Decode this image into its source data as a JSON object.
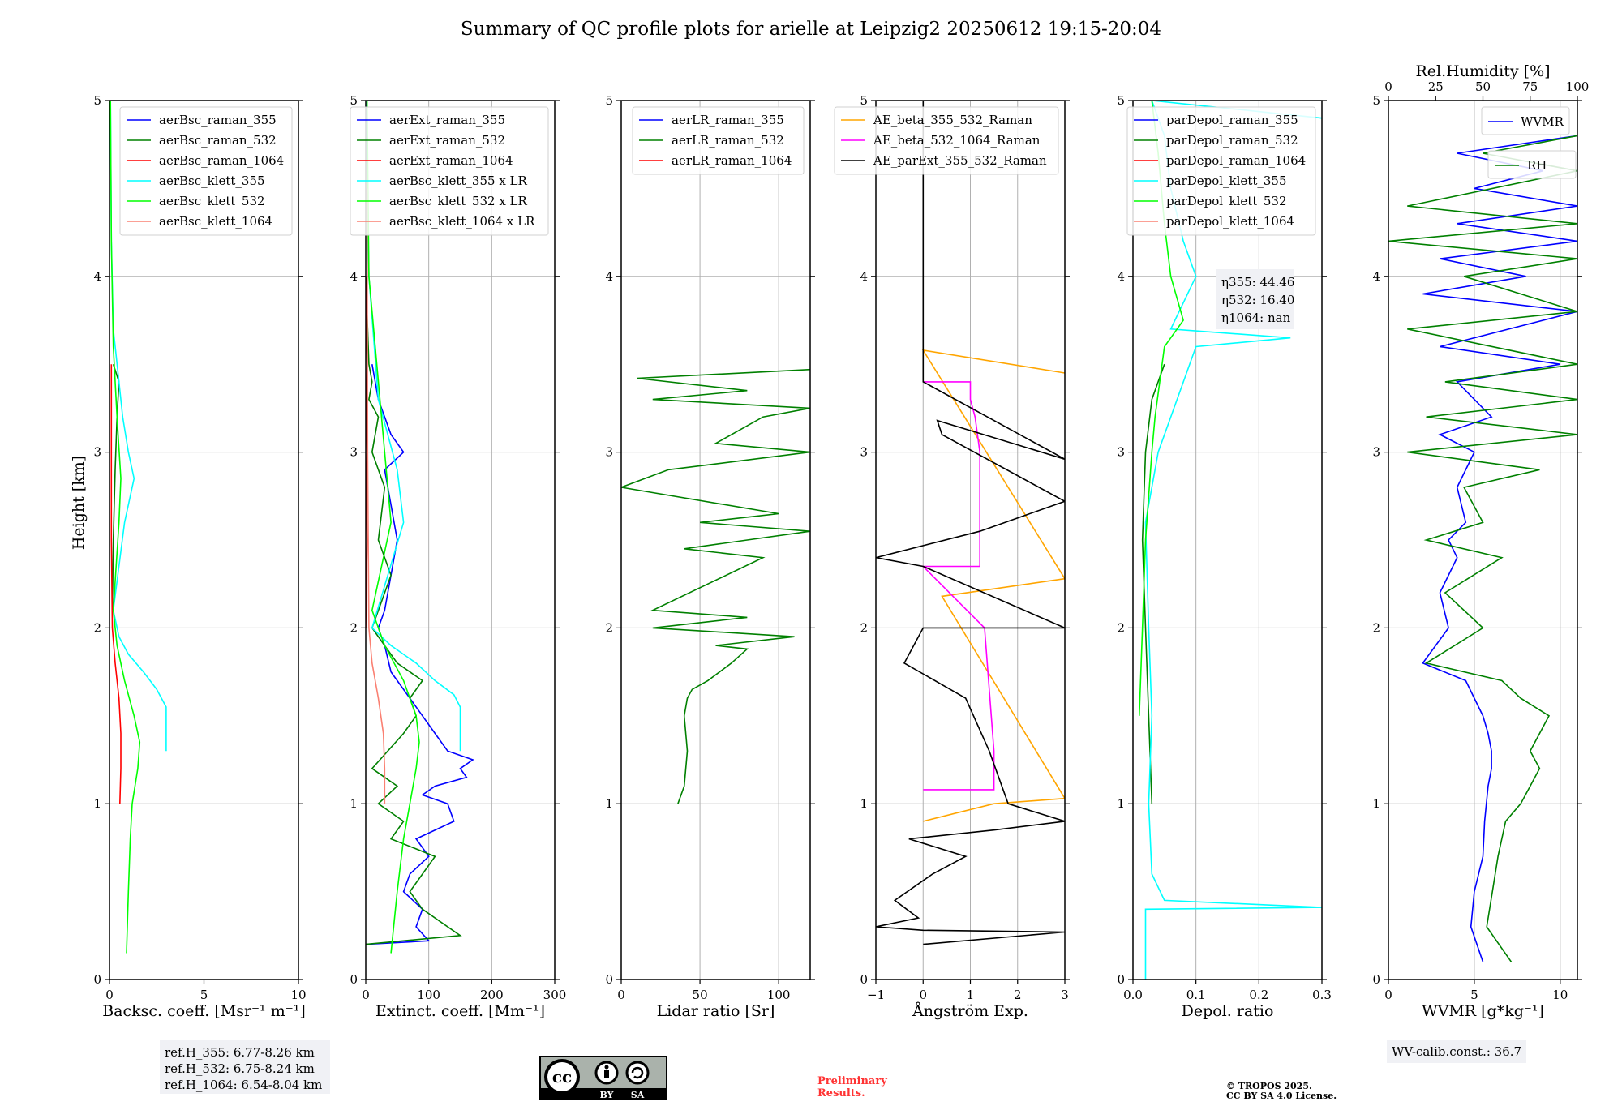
{
  "title": "Summary of QC profile plots for arielle at Leipzig2 20250612 19:15-20:04",
  "ylabel": "Height [km]",
  "ref_box": [
    "ref.H_355: 6.77-8.26 km",
    "ref.H_532: 6.75-8.24 km",
    "ref.H_1064: 6.54-8.04 km"
  ],
  "eta_box": [
    "η355: 44.46",
    "η532: 16.40",
    "η1064: nan"
  ],
  "wv_calib": "WV-calib.const.: 36.7",
  "preliminary": [
    "Preliminary",
    "Results."
  ],
  "copyright": [
    "© TROPOS 2025.",
    "CC BY SA 4.0 License."
  ],
  "license_badge": {
    "by": "BY",
    "sa": "SA",
    "cc": "cc"
  },
  "colors": {
    "blue": "#0000ff",
    "green": "#008000",
    "red": "#ff0000",
    "cyan": "#00ffff",
    "lime": "#00ff00",
    "salmon": "#fa8072",
    "orange": "#ffa500",
    "magenta": "#ff00ff",
    "black": "#000000"
  },
  "chart_data": [
    {
      "type": "line",
      "xlabel": "Backsc. coeff. [Msr⁻¹ m⁻¹]",
      "xlim": [
        0,
        10
      ],
      "xticks": [
        0,
        5,
        10
      ],
      "ylim": [
        0,
        5
      ],
      "yticks": [
        0,
        1,
        2,
        3,
        4,
        5
      ],
      "grid": true,
      "legend": "top-right",
      "series": [
        {
          "name": "aerBsc_raman_355",
          "color": "#0000ff",
          "x": [],
          "y": []
        },
        {
          "name": "aerBsc_raman_532",
          "color": "#008000",
          "x": [
            0.15,
            0.2,
            0.3,
            0.4,
            0.5,
            0.2
          ],
          "y": [
            2.1,
            2.5,
            2.9,
            3.2,
            3.4,
            3.5
          ]
        },
        {
          "name": "aerBsc_raman_1064",
          "color": "#ff0000",
          "x": [
            0.55,
            0.6,
            0.6,
            0.5,
            0.3,
            0.15,
            0.1,
            0.1
          ],
          "y": [
            1.0,
            1.2,
            1.4,
            1.6,
            1.8,
            2.0,
            2.5,
            3.5
          ]
        },
        {
          "name": "aerBsc_klett_355",
          "color": "#00ffff",
          "x": [
            3.0,
            3.0,
            2.5,
            1.8,
            1.0,
            0.5,
            0.2,
            0.8,
            1.3,
            1.0,
            0.7,
            0.5,
            0.2,
            0.1,
            0.05
          ],
          "y": [
            1.3,
            1.55,
            1.65,
            1.75,
            1.85,
            1.95,
            2.1,
            2.6,
            2.85,
            3.0,
            3.2,
            3.4,
            3.7,
            4.2,
            5.0
          ]
        },
        {
          "name": "aerBsc_klett_532",
          "color": "#00ff00",
          "x": [
            0.9,
            1.0,
            1.1,
            1.2,
            1.5,
            1.6,
            1.3,
            0.8,
            0.4,
            0.2,
            0.5,
            0.6,
            0.4,
            0.2,
            0.1,
            0.05
          ],
          "y": [
            0.15,
            0.5,
            0.8,
            1.0,
            1.2,
            1.35,
            1.5,
            1.7,
            1.9,
            2.1,
            2.6,
            2.85,
            3.2,
            3.6,
            4.2,
            5.0
          ]
        },
        {
          "name": "aerBsc_klett_1064",
          "color": "#fa8072",
          "x": [],
          "y": []
        }
      ]
    },
    {
      "type": "line",
      "xlabel": "Extinct. coeff. [Mm⁻¹]",
      "xlim": [
        0,
        300
      ],
      "xticks": [
        0,
        100,
        200,
        300
      ],
      "ylim": [
        0,
        5
      ],
      "yticks": [
        0,
        1,
        2,
        3,
        4,
        5
      ],
      "grid": true,
      "legend": "top-right",
      "series": [
        {
          "name": "aerExt_raman_355",
          "color": "#0000ff",
          "x": [
            0,
            100,
            80,
            90,
            60,
            70,
            100,
            80,
            140,
            130,
            90,
            110,
            160,
            150,
            170,
            130,
            110,
            90,
            70,
            40,
            30,
            20,
            30,
            40,
            50,
            40,
            30,
            60,
            40,
            30,
            20,
            10
          ],
          "y": [
            0.2,
            0.22,
            0.3,
            0.4,
            0.5,
            0.6,
            0.7,
            0.8,
            0.9,
            1.0,
            1.05,
            1.1,
            1.15,
            1.2,
            1.25,
            1.3,
            1.4,
            1.5,
            1.6,
            1.75,
            1.9,
            2.0,
            2.1,
            2.3,
            2.5,
            2.7,
            2.9,
            3.0,
            3.1,
            3.2,
            3.3,
            3.5
          ]
        },
        {
          "name": "aerExt_raman_532",
          "color": "#008000",
          "x": [
            0,
            150,
            90,
            70,
            110,
            40,
            60,
            20,
            50,
            10,
            60,
            80,
            70,
            90,
            50,
            30,
            10,
            40,
            20,
            30,
            10,
            20,
            5,
            10,
            5,
            0
          ],
          "y": [
            0.2,
            0.25,
            0.4,
            0.5,
            0.7,
            0.8,
            0.9,
            1.0,
            1.1,
            1.2,
            1.4,
            1.5,
            1.6,
            1.7,
            1.8,
            1.9,
            2.0,
            2.3,
            2.5,
            2.8,
            3.0,
            3.2,
            3.3,
            3.4,
            3.5,
            4.0
          ]
        },
        {
          "name": "aerExt_raman_1064",
          "color": "#ff0000",
          "x": [
            0,
            2,
            0,
            2,
            0
          ],
          "y": [
            2.0,
            2.5,
            3.0,
            3.5,
            4.0
          ]
        },
        {
          "name": "aerBsc_klett_355 x LR",
          "color": "#00ffff",
          "x": [
            150,
            150,
            140,
            110,
            80,
            40,
            10,
            60,
            50,
            20,
            5,
            0
          ],
          "y": [
            1.3,
            1.55,
            1.62,
            1.7,
            1.8,
            1.9,
            2.0,
            2.6,
            2.9,
            3.3,
            4.0,
            5.0
          ]
        },
        {
          "name": "aerBsc_klett_532 x LR",
          "color": "#00ff00",
          "x": [
            40,
            50,
            60,
            70,
            80,
            85,
            80,
            60,
            30,
            10,
            40,
            30,
            5,
            2
          ],
          "y": [
            0.15,
            0.5,
            0.8,
            1.0,
            1.2,
            1.35,
            1.5,
            1.7,
            1.9,
            2.1,
            2.6,
            3.0,
            4.0,
            5.0
          ]
        },
        {
          "name": "aerBsc_klett_1064 x LR",
          "color": "#fa8072",
          "x": [
            30,
            30,
            28,
            20,
            10,
            5,
            3,
            2
          ],
          "y": [
            1.0,
            1.2,
            1.4,
            1.6,
            1.8,
            2.0,
            3.0,
            4.5
          ]
        }
      ]
    },
    {
      "type": "line",
      "xlabel": "Lidar ratio [Sr]",
      "xlim": [
        0,
        120
      ],
      "xticks": [
        0,
        50,
        100
      ],
      "ylim": [
        0,
        5
      ],
      "yticks": [
        0,
        1,
        2,
        3,
        4,
        5
      ],
      "grid": true,
      "legend": "top-right",
      "series": [
        {
          "name": "aerLR_raman_355",
          "color": "#0000ff",
          "x": [],
          "y": []
        },
        {
          "name": "aerLR_raman_532",
          "color": "#008000",
          "x": [
            36,
            40,
            42,
            40,
            42,
            45,
            55,
            70,
            80,
            60,
            110,
            20,
            50,
            80,
            20,
            90,
            40,
            120,
            50,
            100,
            0,
            30,
            120,
            60,
            90,
            120,
            20,
            80,
            10,
            120
          ],
          "y": [
            1.0,
            1.1,
            1.3,
            1.5,
            1.6,
            1.65,
            1.7,
            1.8,
            1.88,
            1.9,
            1.95,
            2.0,
            2.03,
            2.06,
            2.1,
            2.4,
            2.45,
            2.55,
            2.6,
            2.65,
            2.8,
            2.9,
            3.0,
            3.05,
            3.2,
            3.25,
            3.3,
            3.35,
            3.42,
            3.47
          ]
        },
        {
          "name": "aerLR_raman_1064",
          "color": "#ff0000",
          "x": [],
          "y": []
        }
      ]
    },
    {
      "type": "line",
      "xlabel": "Ångström Exp.",
      "xlim": [
        -1,
        3
      ],
      "xticks": [
        -1,
        0,
        1,
        2,
        3
      ],
      "ylim": [
        0,
        5
      ],
      "yticks": [
        0,
        1,
        2,
        3,
        4,
        5
      ],
      "grid": true,
      "legend": "top-right",
      "series": [
        {
          "name": "AE_beta_355_532_Raman",
          "color": "#ffa500",
          "x": [
            0,
            1.5,
            3.0,
            0.4,
            3.0,
            0,
            3.0
          ],
          "y": [
            0.9,
            1.0,
            1.03,
            2.18,
            2.28,
            3.58,
            3.45
          ]
        },
        {
          "name": "AE_beta_532_1064_Raman",
          "color": "#ff00ff",
          "x": [
            0,
            1.5,
            1.5,
            1.3,
            0,
            1.2,
            1.2,
            1.1,
            1.0,
            1.0,
            0
          ],
          "y": [
            1.08,
            1.08,
            1.3,
            2.0,
            2.35,
            2.35,
            3.0,
            3.2,
            3.3,
            3.4,
            3.4
          ]
        },
        {
          "name": "AE_parExt_355_532_Raman",
          "color": "#000000",
          "x": [
            0,
            3.0,
            0,
            -1,
            -0.1,
            -0.6,
            0.2,
            0.9,
            -0.3,
            1.5,
            3.0,
            1.8,
            1.4,
            0.9,
            -0.4,
            0,
            3.0,
            0,
            -1,
            1.2,
            3.0,
            0.4,
            0.3,
            3.0,
            0,
            0
          ],
          "y": [
            0.2,
            0.27,
            0.28,
            0.3,
            0.35,
            0.45,
            0.6,
            0.7,
            0.8,
            0.85,
            0.9,
            1.0,
            1.3,
            1.6,
            1.8,
            2.0,
            2.0,
            2.35,
            2.4,
            2.55,
            2.72,
            3.1,
            3.18,
            2.96,
            3.4,
            5.0
          ]
        }
      ]
    },
    {
      "type": "line",
      "xlabel": "Depol. ratio",
      "xlim": [
        0,
        0.3
      ],
      "xticks": [
        0,
        0.1,
        0.2,
        0.3
      ],
      "xticklabels": [
        "0.0",
        "0.1",
        "0.2",
        "0.3"
      ],
      "ylim": [
        0,
        5
      ],
      "yticks": [
        0,
        1,
        2,
        3,
        4,
        5
      ],
      "grid": true,
      "legend": "top-right",
      "series": [
        {
          "name": "parDepol_raman_355",
          "color": "#0000ff",
          "x": [],
          "y": []
        },
        {
          "name": "parDepol_raman_532",
          "color": "#008000",
          "x": [
            0.03,
            0.025,
            0.02,
            0.015,
            0.02,
            0.03,
            0.05
          ],
          "y": [
            1.0,
            1.5,
            2.0,
            2.5,
            3.0,
            3.3,
            3.5
          ]
        },
        {
          "name": "parDepol_raman_1064",
          "color": "#ff0000",
          "x": [],
          "y": []
        },
        {
          "name": "parDepol_klett_355",
          "color": "#00ffff",
          "x": [
            0.02,
            0.02,
            0.3,
            0.05,
            0.03,
            0.025,
            0.03,
            0.025,
            0.02,
            0.04,
            0.07,
            0.1,
            0.25,
            0.06,
            0.1,
            0.08,
            0.06,
            0.05,
            0.03,
            0.3
          ],
          "y": [
            0.0,
            0.4,
            0.41,
            0.45,
            0.6,
            1.0,
            1.5,
            2.0,
            2.6,
            3.0,
            3.3,
            3.6,
            3.65,
            3.7,
            4.0,
            4.2,
            4.5,
            4.8,
            5.0,
            4.9
          ]
        },
        {
          "name": "parDepol_klett_532",
          "color": "#00ff00",
          "x": [
            0.01,
            0.015,
            0.02,
            0.03,
            0.035,
            0.05,
            0.08,
            0.06,
            0.05,
            0.04,
            0.03
          ],
          "y": [
            1.5,
            2.0,
            2.5,
            3.0,
            3.2,
            3.6,
            3.75,
            4.0,
            4.3,
            4.7,
            5.0
          ]
        },
        {
          "name": "parDepol_klett_1064",
          "color": "#fa8072",
          "x": [],
          "y": []
        }
      ]
    },
    {
      "type": "line",
      "xlabel": "WVMR [g*kg⁻¹]",
      "xlim": [
        0,
        11
      ],
      "xticks": [
        0,
        5,
        10
      ],
      "ylim": [
        0,
        5
      ],
      "yticks": [
        0,
        1,
        2,
        3,
        4,
        5
      ],
      "x2label": "Rel.Humidity [%]",
      "x2lim": [
        0,
        100
      ],
      "x2ticks": [
        0,
        25,
        50,
        75,
        100
      ],
      "grid": true,
      "legend": "top-right",
      "series": [
        {
          "name": "WVMR",
          "color": "#0000ff",
          "x": [
            5.5,
            4.8,
            5.0,
            5.5,
            5.6,
            5.8,
            6.0,
            6.0,
            5.8,
            5.5,
            5.0,
            4.5,
            2.0,
            3.5,
            3.0,
            4.0,
            3.5,
            4.5,
            4.0,
            5.0,
            3.0,
            6.0,
            4.0,
            10.0,
            3.0,
            11.0,
            2.0,
            8.0,
            3.0,
            11.0,
            4.0,
            11.0,
            5.0,
            9.0,
            4.0,
            11.0
          ],
          "y": [
            0.1,
            0.3,
            0.5,
            0.7,
            0.9,
            1.1,
            1.2,
            1.3,
            1.4,
            1.5,
            1.6,
            1.7,
            1.8,
            2.0,
            2.2,
            2.4,
            2.5,
            2.6,
            2.8,
            3.0,
            3.1,
            3.2,
            3.4,
            3.5,
            3.6,
            3.8,
            3.9,
            4.0,
            4.1,
            4.2,
            4.3,
            4.4,
            4.5,
            4.6,
            4.7,
            4.8
          ]
        },
        {
          "name": "RH",
          "color": "#008000",
          "x": [
            65,
            52,
            55,
            58,
            62,
            70,
            75,
            80,
            75,
            85,
            70,
            60,
            20,
            50,
            30,
            60,
            20,
            50,
            40,
            80,
            10,
            100,
            20,
            100,
            30,
            100,
            10,
            100,
            40,
            100,
            0,
            100,
            10,
            100,
            50,
            100
          ],
          "y": [
            0.1,
            0.3,
            0.5,
            0.7,
            0.9,
            1.0,
            1.1,
            1.2,
            1.3,
            1.5,
            1.6,
            1.7,
            1.8,
            2.0,
            2.2,
            2.4,
            2.5,
            2.6,
            2.8,
            2.9,
            3.0,
            3.1,
            3.2,
            3.3,
            3.4,
            3.5,
            3.7,
            3.8,
            4.0,
            4.1,
            4.2,
            4.3,
            4.4,
            4.6,
            4.7,
            4.8
          ]
        }
      ]
    }
  ]
}
